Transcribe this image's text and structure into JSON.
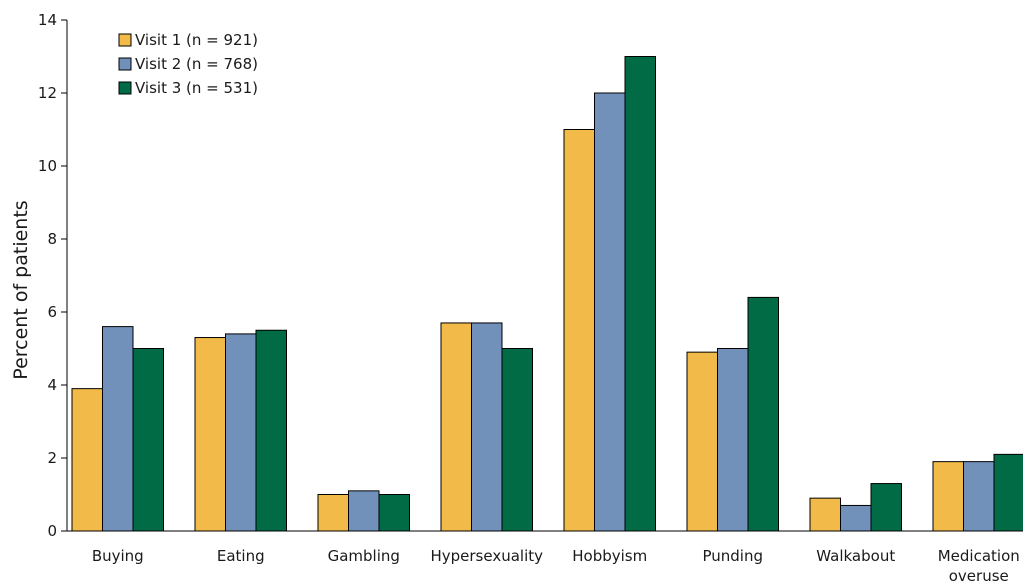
{
  "chart_data": {
    "type": "bar",
    "title": "",
    "xlabel": "",
    "ylabel": "Percent of patients",
    "ylim": [
      0,
      14
    ],
    "yticks": [
      0,
      2,
      4,
      6,
      8,
      10,
      12,
      14
    ],
    "grid": false,
    "legend_position": "top-left",
    "categories": [
      [
        "Buying"
      ],
      [
        "Eating"
      ],
      [
        "Gambling"
      ],
      [
        "Hypersexuality"
      ],
      [
        "Hobbyism"
      ],
      [
        "Punding"
      ],
      [
        "Walkabout"
      ],
      [
        "Medication",
        "overuse"
      ]
    ],
    "series": [
      {
        "name": "Visit 1 (n = 921)",
        "color": "#f2bb49",
        "values": [
          3.9,
          5.3,
          1.0,
          5.7,
          11.0,
          4.9,
          0.9,
          1.9
        ]
      },
      {
        "name": "Visit 2 (n = 768)",
        "color": "#7191bb",
        "values": [
          5.6,
          5.4,
          1.1,
          5.7,
          12.0,
          5.0,
          0.7,
          1.9
        ]
      },
      {
        "name": "Visit 3 (n = 531)",
        "color": "#006b45",
        "values": [
          5.0,
          5.5,
          1.0,
          5.0,
          13.0,
          6.4,
          1.3,
          2.1
        ]
      }
    ]
  }
}
